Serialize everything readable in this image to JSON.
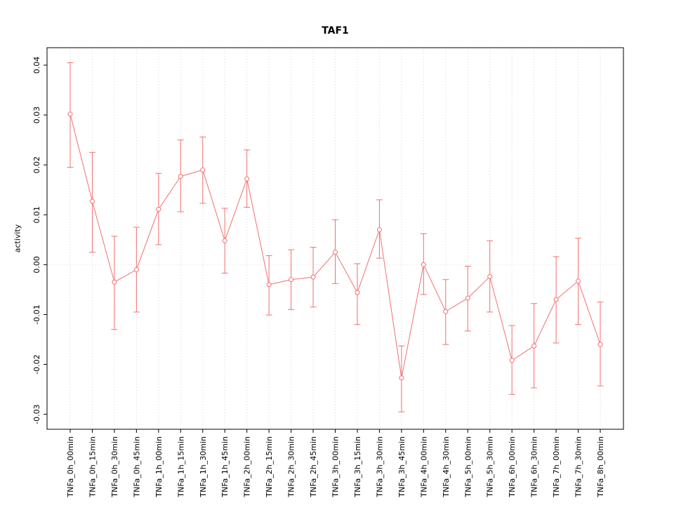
{
  "chart_data": {
    "type": "line",
    "title": "TAF1",
    "ylabel": "activity",
    "xlabel": "",
    "legend": "none",
    "marker": "open-circle",
    "error_bars": true,
    "grid": "dotted vertical gridlines at each category plus dotted horizontal line at y=0",
    "categories": [
      "TNFa_0h_00min",
      "TNFa_0h_15min",
      "TNFa_0h_30min",
      "TNFa_0h_45min",
      "TNFa_1h_00min",
      "TNFa_1h_15min",
      "TNFa_1h_30min",
      "TNFa_1h_45min",
      "TNFa_2h_00min",
      "TNFa_2h_15min",
      "TNFa_2h_30min",
      "TNFa_2h_45min",
      "TNFa_3h_00min",
      "TNFa_3h_15min",
      "TNFa_3h_30min",
      "TNFa_3h_45min",
      "TNFa_4h_00min",
      "TNFa_4h_30min",
      "TNFa_5h_00min",
      "TNFa_5h_30min",
      "TNFa_6h_00min",
      "TNFa_6h_30min",
      "TNFa_7h_00min",
      "TNFa_7h_30min",
      "TNFa_8h_00min"
    ],
    "values": [
      0.0302,
      0.0127,
      -0.0035,
      -0.001,
      0.0111,
      0.0177,
      0.019,
      0.0048,
      0.0172,
      -0.004,
      -0.003,
      -0.0025,
      0.0025,
      -0.0056,
      0.007,
      -0.0227,
      0.0,
      -0.0094,
      -0.0067,
      -0.0024,
      -0.0192,
      -0.0163,
      -0.007,
      -0.0033,
      -0.016
    ],
    "error_high": [
      0.0405,
      0.0225,
      0.0057,
      0.0075,
      0.0183,
      0.025,
      0.0256,
      0.0113,
      0.023,
      0.0018,
      0.003,
      0.0035,
      0.009,
      0.0002,
      0.013,
      -0.0163,
      0.0062,
      -0.003,
      -0.0003,
      0.0048,
      -0.0122,
      -0.0078,
      0.0016,
      0.0053,
      -0.0075
    ],
    "error_low": [
      0.0195,
      0.0025,
      -0.013,
      -0.0095,
      0.004,
      0.0106,
      0.0123,
      -0.0017,
      0.0115,
      -0.0101,
      -0.009,
      -0.0085,
      -0.0038,
      -0.012,
      0.0013,
      -0.0295,
      -0.006,
      -0.016,
      -0.0133,
      -0.0095,
      -0.026,
      -0.0247,
      -0.0157,
      -0.012,
      -0.0243
    ],
    "yticks": [
      -0.03,
      -0.02,
      -0.01,
      0.0,
      0.01,
      0.02,
      0.03,
      0.04
    ],
    "ylim": [
      -0.033,
      0.0435
    ],
    "colors": {
      "series": "#f46f6f",
      "grid": "#d6d6d6",
      "zero_line": "#e2dede",
      "axis": "#000000",
      "background": "#ffffff"
    }
  }
}
